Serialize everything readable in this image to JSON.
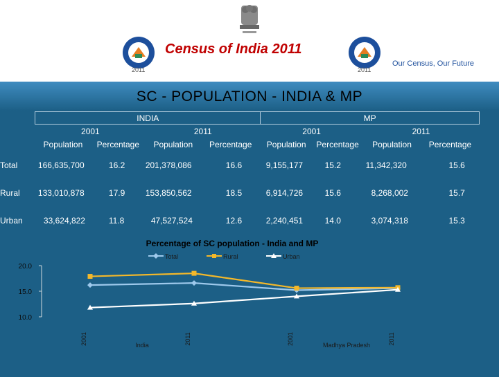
{
  "header": {
    "title": "Census of India  2011",
    "tagline": "Our Census,  Our Future",
    "logo_year": "2011"
  },
  "page_title": "SC - POPULATION - INDIA & MP",
  "table": {
    "groups": [
      "INDIA",
      "MP"
    ],
    "years": [
      "2001",
      "2011",
      "2001",
      "2011"
    ],
    "col_headers": [
      "Population",
      "Percentage",
      "Population",
      "Percentage",
      "Population",
      "Percentage",
      "Population",
      "Percentage"
    ],
    "rows": [
      {
        "label": "Total",
        "cells": [
          "166,635,700",
          "16.2",
          "201,378,086",
          "16.6",
          "9,155,177",
          "15.2",
          "11,342,320",
          "15.6"
        ]
      },
      {
        "label": "Rural",
        "cells": [
          "133,010,878",
          "17.9",
          "153,850,562",
          "18.5",
          "6,914,726",
          "15.6",
          "8,268,002",
          "15.7"
        ]
      },
      {
        "label": "Urban",
        "cells": [
          "33,624,822",
          "11.8",
          "47,527,524",
          "12.6",
          "2,240,451",
          "14.0",
          "3,074,318",
          "15.3"
        ]
      }
    ]
  },
  "chart_data": {
    "type": "line",
    "title": "Percentage of SC population - India and MP",
    "categories": [
      "2001",
      "2011",
      "2001",
      "2011"
    ],
    "group_labels": [
      "India",
      "Madhya Pradesh"
    ],
    "y_ticks": [
      "20.0",
      "15.0",
      "10.0"
    ],
    "ylim": [
      10,
      20
    ],
    "legend_position": "top",
    "series": [
      {
        "name": "Total",
        "values": [
          16.2,
          16.6,
          15.2,
          15.6
        ],
        "color": "#9ec9ec"
      },
      {
        "name": "Rural",
        "values": [
          17.9,
          18.5,
          15.6,
          15.7
        ],
        "color": "#f4b82a"
      },
      {
        "name": "Urban",
        "values": [
          11.8,
          12.6,
          14.0,
          15.3
        ],
        "color": "#ffffff"
      }
    ]
  }
}
